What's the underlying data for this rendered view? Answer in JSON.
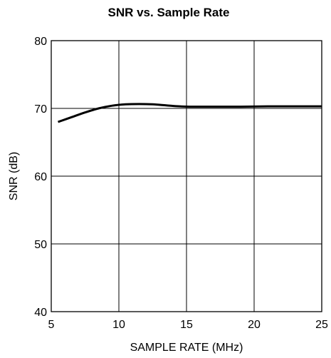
{
  "chart_data": {
    "type": "line",
    "title": "SNR vs. Sample Rate",
    "xlabel": "SAMPLE RATE (MHz)",
    "ylabel": "SNR (dB)",
    "xlim": [
      5,
      25
    ],
    "ylim": [
      40,
      80
    ],
    "x_ticks": [
      "5",
      "10",
      "15",
      "20",
      "25"
    ],
    "y_ticks": [
      "40",
      "50",
      "60",
      "70",
      "80"
    ],
    "grid": true,
    "series": [
      {
        "x": [
          5.5,
          6.5,
          7.5,
          8.5,
          9.5,
          10.5,
          11.5,
          12.5,
          13.5,
          14.5,
          15.5,
          17,
          19,
          21,
          23,
          25
        ],
        "y": [
          68.0,
          68.7,
          69.4,
          70.0,
          70.4,
          70.6,
          70.65,
          70.6,
          70.45,
          70.3,
          70.25,
          70.25,
          70.25,
          70.3,
          70.3,
          70.3
        ]
      }
    ],
    "line_color": "#000000"
  }
}
